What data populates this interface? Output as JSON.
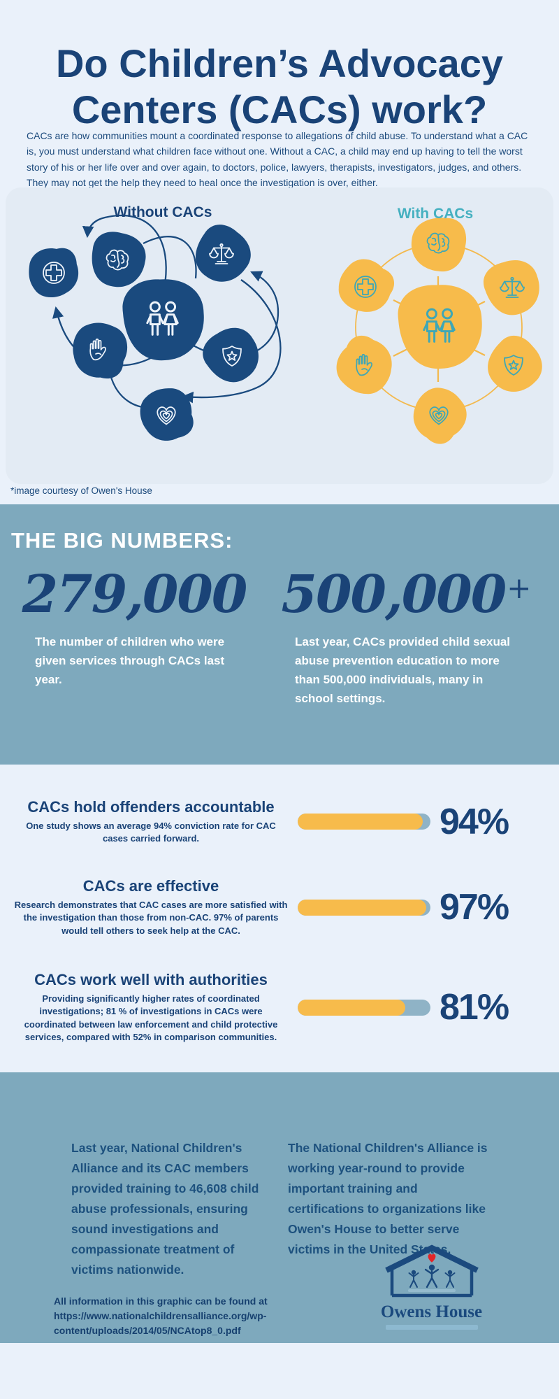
{
  "header": {
    "title_line1": "Do Children’s Advocacy",
    "title_line2": "Centers (CACs) work?",
    "intro": "CACs are how communities mount a coordinated response to allegations of child abuse. To understand what a CAC is, you must understand what children face without one. Without a CAC, a child may end up having to tell the worst story of his or her life over and over again, to doctors, police, lawyers, therapists, investigators, judges, and others. They may not get the help they need to heal once the investigation is over, either."
  },
  "diagram": {
    "without_title": "Without CACs",
    "with_title": "With CACs",
    "caption": "*image courtesy of Owen's House",
    "icons": [
      "brain-icon",
      "medical-cross-icon",
      "scales-of-justice-icon",
      "children-icon",
      "helping-hand-icon",
      "shield-star-icon",
      "heart-icon"
    ]
  },
  "big_numbers": {
    "heading": "THE BIG NUMBERS:",
    "stats": [
      {
        "value": "279,000",
        "suffix": "",
        "description": "The number of children who were given services through CACs last year."
      },
      {
        "value": "500,000",
        "suffix": "+",
        "description": "Last year, CACs provided child sexual abuse prevention education to more than 500,000 individuals, many in school settings."
      }
    ]
  },
  "percent_stats": [
    {
      "title": "CACs hold offenders accountable",
      "description": "One study shows an average 94% conviction rate for CAC cases carried forward.",
      "percent_label": "94%",
      "value": 94
    },
    {
      "title": "CACs are effective",
      "description": "Research demonstrates that CAC cases are more satisfied with the investigation than those from non-CAC. 97% of parents would tell others to seek help at the CAC.",
      "percent_label": "97%",
      "value": 97
    },
    {
      "title": "CACs work well with authorities",
      "description": "Providing significantly higher rates of coordinated investigations; 81 % of investigations in CACs were coordinated between law enforcement and child protective services, compared with 52% in comparison communities.",
      "percent_label": "81%",
      "value": 81
    }
  ],
  "closing": {
    "left_text": "Last year, National Children's Alliance and its CAC members provided training to 46,608 child abuse professionals, ensuring sound investigations and compassionate treatment of victims nationwide.",
    "right_text": "The National Children's Alliance is working year-round to provide important training and certifications to organizations like Owen's House to better serve victims in the United States.",
    "source_text": "All information in this graphic can be found at https://www.nationalchildrensalliance.org/wp-content/uploads/2014/05/NCAtop8_0.pdf",
    "logo_name": "Owens House"
  },
  "colors": {
    "navy": "#1a4377",
    "steel_blue": "#7ea9bd",
    "light_blue": "#eaf1fa",
    "panel_blue": "#e3ebf4",
    "yellow": "#f7bb4b",
    "teal": "#45b0c0",
    "bar_track": "#8fb3c6",
    "heart_red": "#e32528",
    "white": "#ffffff"
  }
}
